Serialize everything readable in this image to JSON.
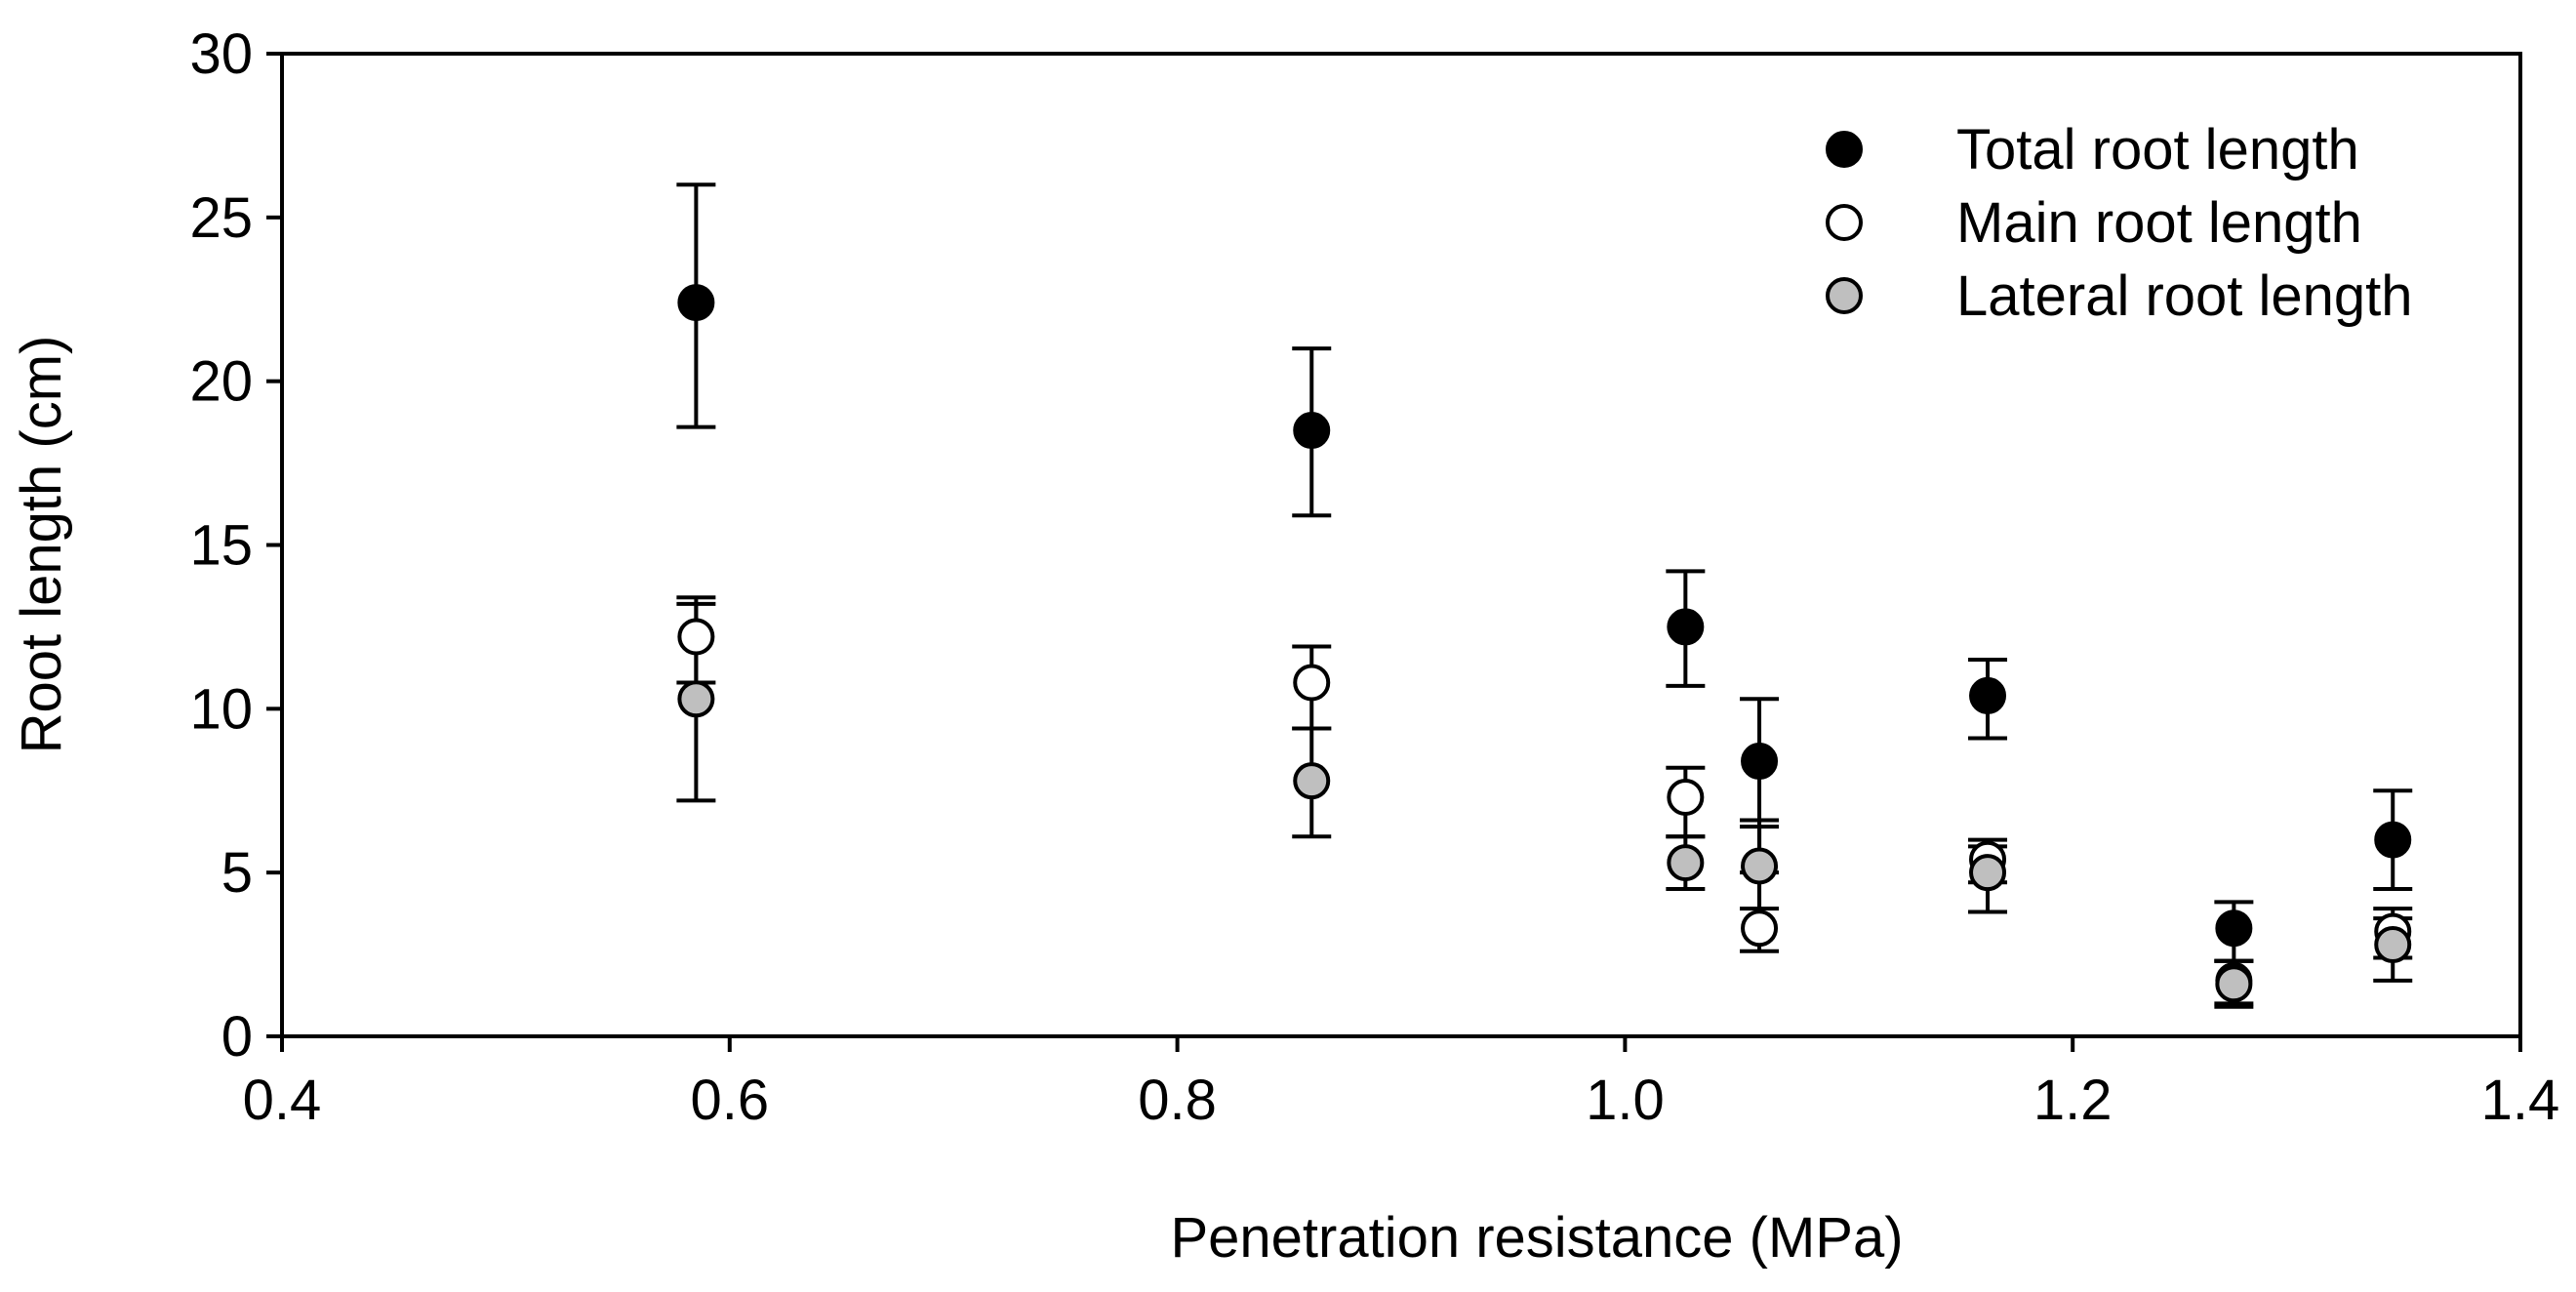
{
  "chart_data": {
    "type": "scatter",
    "title": "",
    "xlabel": "Penetration resistance (MPa)",
    "ylabel": "Root length (cm)",
    "xlim": [
      0.4,
      1.4
    ],
    "ylim": [
      0,
      30
    ],
    "xticks": [
      0.4,
      0.6,
      0.8,
      1.0,
      1.2,
      1.4
    ],
    "xtick_labels": [
      "0.4",
      "0.6",
      "0.8",
      "1.0",
      "1.2",
      "1.4"
    ],
    "yticks": [
      0,
      5,
      10,
      15,
      20,
      25,
      30
    ],
    "ytick_labels": [
      "0",
      "5",
      "10",
      "15",
      "20",
      "25",
      "30"
    ],
    "grid": false,
    "legend_position": "top-right",
    "series": [
      {
        "name": "Total root length",
        "color": "#000000",
        "marker": "filled-black-circle",
        "x": [
          0.585,
          0.86,
          1.027,
          1.06,
          1.162,
          1.272,
          1.343
        ],
        "y": [
          22.4,
          18.5,
          12.5,
          8.4,
          10.4,
          3.3,
          6.0
        ],
        "y_err_low": [
          18.6,
          15.9,
          10.7,
          5.0,
          9.1,
          2.3,
          4.5
        ],
        "y_err_high": [
          26.0,
          21.0,
          14.2,
          10.3,
          11.5,
          4.1,
          7.5
        ]
      },
      {
        "name": "Main root length",
        "color": "#ffffff",
        "marker": "open-white-circle",
        "x": [
          0.585,
          0.86,
          1.027,
          1.06,
          1.162,
          1.272,
          1.343
        ],
        "y": [
          12.2,
          10.8,
          7.3,
          3.3,
          5.4,
          1.7,
          3.2
        ],
        "y_err_low": [
          10.8,
          9.4,
          6.1,
          2.6,
          4.7,
          1.0,
          2.4
        ],
        "y_err_high": [
          13.4,
          11.9,
          8.2,
          6.4,
          6.0,
          2.3,
          3.9
        ]
      },
      {
        "name": "Lateral root length",
        "color": "#bfbfbf",
        "marker": "grey-circle",
        "x": [
          0.585,
          0.86,
          1.027,
          1.06,
          1.162,
          1.272,
          1.343
        ],
        "y": [
          10.3,
          7.8,
          5.3,
          5.2,
          5.0,
          1.6,
          2.8
        ],
        "y_err_low": [
          7.2,
          6.1,
          4.5,
          3.9,
          3.8,
          0.9,
          1.7
        ],
        "y_err_high": [
          13.2,
          9.4,
          6.1,
          6.6,
          5.8,
          2.3,
          3.6
        ]
      }
    ]
  }
}
